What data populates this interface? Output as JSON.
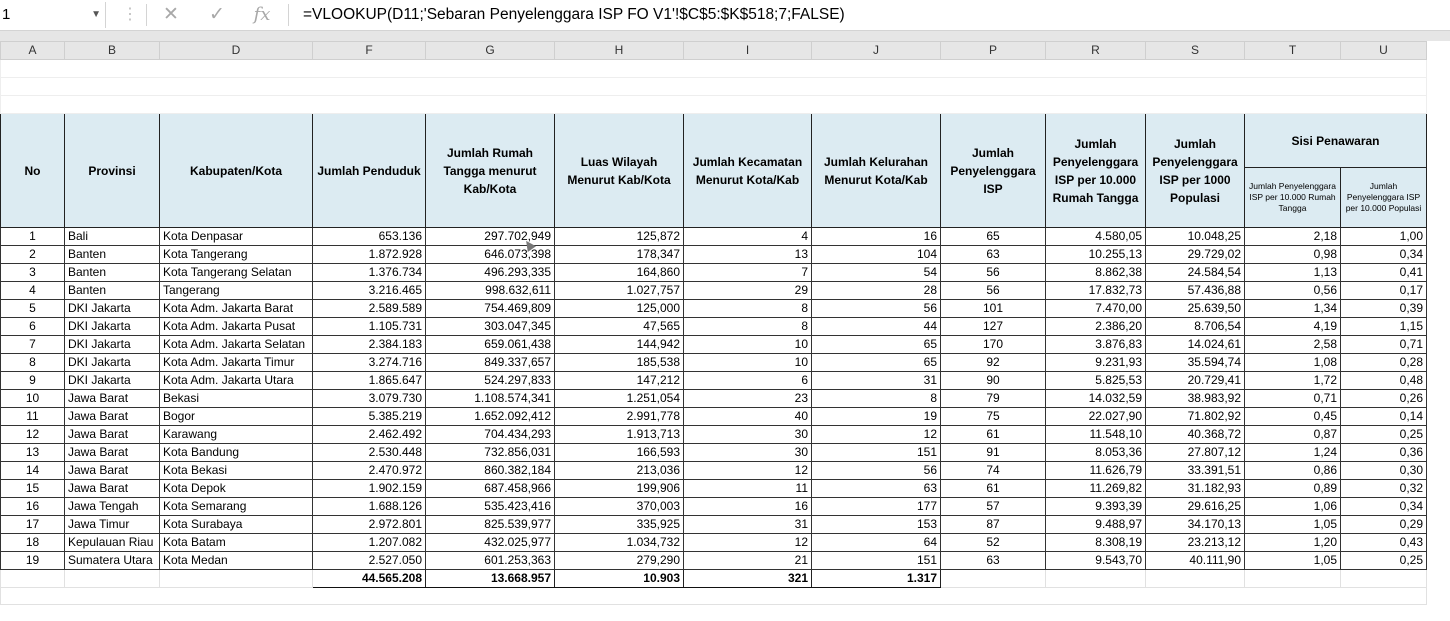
{
  "formula_bar": {
    "name_box": "1",
    "cancel_icon": "✕",
    "enter_icon": "✓",
    "fx_label": "fx",
    "formula": "=VLOOKUP(D11;'Sebaran Penyelenggara ISP FO V1'!$C$5:$K$518;7;FALSE)"
  },
  "columns": [
    "A",
    "B",
    "D",
    "F",
    "G",
    "H",
    "I",
    "J",
    "P",
    "R",
    "S",
    "T",
    "U"
  ],
  "headers": {
    "no": "No",
    "provinsi": "Provinsi",
    "kabkota": "Kabupaten/Kota",
    "penduduk": "Jumlah Penduduk",
    "rumah_tangga": "Jumlah Rumah Tangga menurut Kab/Kota",
    "luas": "Luas Wilayah Menurut Kab/Kota",
    "kecamatan": "Jumlah Kecamatan Menurut Kota/Kab",
    "kelurahan": "Jumlah Kelurahan Menurut Kota/Kab",
    "isp": "Jumlah Penyelenggara ISP",
    "isp_rt": "Jumlah Penyelenggara ISP per 10.000 Rumah Tangga",
    "isp_pop": "Jumlah Penyelenggara ISP per 1000 Populasi",
    "sisi": "Sisi Penawaran",
    "sisi_rt": "Jumlah Penyelenggara ISP per 10.000 Rumah Tangga",
    "sisi_pop": "Jumlah Penyelenggara ISP per 10.000 Populasi"
  },
  "rows": [
    [
      "1",
      "Bali",
      "Kota Denpasar",
      "653.136",
      "297.702,949",
      "125,872",
      "4",
      "16",
      "65",
      "4.580,05",
      "10.048,25",
      "2,18",
      "1,00"
    ],
    [
      "2",
      "Banten",
      "Kota Tangerang",
      "1.872.928",
      "646.073,398",
      "178,347",
      "13",
      "104",
      "63",
      "10.255,13",
      "29.729,02",
      "0,98",
      "0,34"
    ],
    [
      "3",
      "Banten",
      "Kota Tangerang Selatan",
      "1.376.734",
      "496.293,335",
      "164,860",
      "7",
      "54",
      "56",
      "8.862,38",
      "24.584,54",
      "1,13",
      "0,41"
    ],
    [
      "4",
      "Banten",
      "Tangerang",
      "3.216.465",
      "998.632,611",
      "1.027,757",
      "29",
      "28",
      "56",
      "17.832,73",
      "57.436,88",
      "0,56",
      "0,17"
    ],
    [
      "5",
      "DKI Jakarta",
      "Kota Adm. Jakarta Barat",
      "2.589.589",
      "754.469,809",
      "125,000",
      "8",
      "56",
      "101",
      "7.470,00",
      "25.639,50",
      "1,34",
      "0,39"
    ],
    [
      "6",
      "DKI Jakarta",
      "Kota Adm. Jakarta Pusat",
      "1.105.731",
      "303.047,345",
      "47,565",
      "8",
      "44",
      "127",
      "2.386,20",
      "8.706,54",
      "4,19",
      "1,15"
    ],
    [
      "7",
      "DKI Jakarta",
      "Kota Adm. Jakarta Selatan",
      "2.384.183",
      "659.061,438",
      "144,942",
      "10",
      "65",
      "170",
      "3.876,83",
      "14.024,61",
      "2,58",
      "0,71"
    ],
    [
      "8",
      "DKI Jakarta",
      "Kota Adm. Jakarta Timur",
      "3.274.716",
      "849.337,657",
      "185,538",
      "10",
      "65",
      "92",
      "9.231,93",
      "35.594,74",
      "1,08",
      "0,28"
    ],
    [
      "9",
      "DKI Jakarta",
      "Kota Adm. Jakarta Utara",
      "1.865.647",
      "524.297,833",
      "147,212",
      "6",
      "31",
      "90",
      "5.825,53",
      "20.729,41",
      "1,72",
      "0,48"
    ],
    [
      "10",
      "Jawa Barat",
      "Bekasi",
      "3.079.730",
      "1.108.574,341",
      "1.251,054",
      "23",
      "8",
      "79",
      "14.032,59",
      "38.983,92",
      "0,71",
      "0,26"
    ],
    [
      "11",
      "Jawa Barat",
      "Bogor",
      "5.385.219",
      "1.652.092,412",
      "2.991,778",
      "40",
      "19",
      "75",
      "22.027,90",
      "71.802,92",
      "0,45",
      "0,14"
    ],
    [
      "12",
      "Jawa Barat",
      "Karawang",
      "2.462.492",
      "704.434,293",
      "1.913,713",
      "30",
      "12",
      "61",
      "11.548,10",
      "40.368,72",
      "0,87",
      "0,25"
    ],
    [
      "13",
      "Jawa Barat",
      "Kota Bandung",
      "2.530.448",
      "732.856,031",
      "166,593",
      "30",
      "151",
      "91",
      "8.053,36",
      "27.807,12",
      "1,24",
      "0,36"
    ],
    [
      "14",
      "Jawa Barat",
      "Kota Bekasi",
      "2.470.972",
      "860.382,184",
      "213,036",
      "12",
      "56",
      "74",
      "11.626,79",
      "33.391,51",
      "0,86",
      "0,30"
    ],
    [
      "15",
      "Jawa Barat",
      "Kota Depok",
      "1.902.159",
      "687.458,966",
      "199,906",
      "11",
      "63",
      "61",
      "11.269,82",
      "31.182,93",
      "0,89",
      "0,32"
    ],
    [
      "16",
      "Jawa Tengah",
      "Kota Semarang",
      "1.688.126",
      "535.423,416",
      "370,003",
      "16",
      "177",
      "57",
      "9.393,39",
      "29.616,25",
      "1,06",
      "0,34"
    ],
    [
      "17",
      "Jawa Timur",
      "Kota Surabaya",
      "2.972.801",
      "825.539,977",
      "335,925",
      "31",
      "153",
      "87",
      "9.488,97",
      "34.170,13",
      "1,05",
      "0,29"
    ],
    [
      "18",
      "Kepulauan Riau",
      "Kota Batam",
      "1.207.082",
      "432.025,977",
      "1.034,732",
      "12",
      "64",
      "52",
      "8.308,19",
      "23.213,12",
      "1,20",
      "0,43"
    ],
    [
      "19",
      "Sumatera Utara",
      "Kota Medan",
      "2.527.050",
      "601.253,363",
      "279,290",
      "21",
      "151",
      "63",
      "9.543,70",
      "40.111,90",
      "1,05",
      "0,25"
    ]
  ],
  "totals": {
    "penduduk": "44.565.208",
    "rumah_tangga": "13.668.957",
    "luas": "10.903",
    "kecamatan": "321",
    "kelurahan": "1.317"
  }
}
